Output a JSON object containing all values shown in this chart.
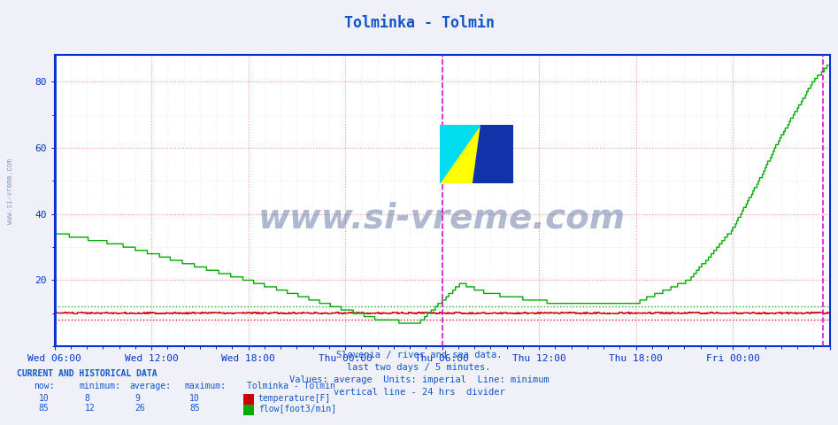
{
  "title": "Tolminka - Tolmin",
  "title_color": "#1155cc",
  "background_color": "#f0f0f8",
  "plot_bg_color": "#ffffff",
  "ylim": [
    0,
    88
  ],
  "yticks": [
    20,
    40,
    60,
    80
  ],
  "x_tick_labels": [
    "Wed 06:00",
    "Wed 12:00",
    "Wed 18:00",
    "Thu 00:00",
    "Thu 06:00",
    "Thu 12:00",
    "Thu 18:00",
    "Fri 00:00",
    ""
  ],
  "n_points": 576,
  "temp_value": 10,
  "temp_min": 8,
  "temp_avg": 9,
  "temp_max": 10,
  "flow_now": 85,
  "flow_min": 12,
  "flow_avg": 26,
  "flow_max": 85,
  "subtitle_lines": [
    "Slovenia / river and sea data.",
    "last two days / 5 minutes.",
    "Values: average  Units: imperial  Line: minimum",
    "vertical line - 24 hrs  divider"
  ],
  "legend_title": "Tolminka - Tolmin",
  "temp_color": "#cc0000",
  "flow_color": "#00aa00",
  "flow_min_color": "#00aa00",
  "temp_min_color": "#cc0000",
  "divider_color": "#cc00cc",
  "axis_color": "#0033cc",
  "text_color": "#1155cc",
  "watermark_color": "#1a3a7a",
  "footer_color": "#1155cc",
  "grid_major_color": "#ff8888",
  "grid_minor_color": "#ccccee"
}
